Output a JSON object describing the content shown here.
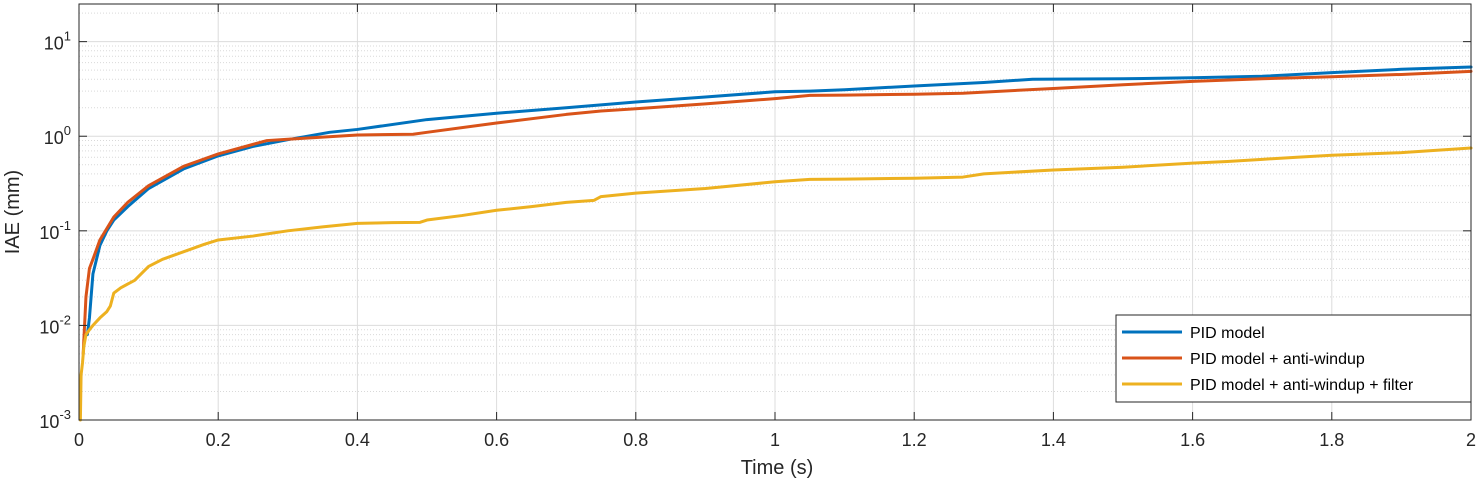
{
  "chart_data": {
    "type": "line",
    "xlabel": "Time (s)",
    "ylabel": "IAE (mm)",
    "x_scale": "linear",
    "y_scale": "log",
    "xlim": [
      0,
      2
    ],
    "ylim": [
      0.001,
      25
    ],
    "grid": true,
    "minor_grid": true,
    "legend_position": "bottom-right",
    "x_ticks": [
      0,
      0.2,
      0.4,
      0.6,
      0.8,
      1,
      1.2,
      1.4,
      1.6,
      1.8,
      2
    ],
    "x_tick_labels": [
      "0",
      "0.2",
      "0.4",
      "0.6",
      "0.8",
      "1",
      "1.2",
      "1.4",
      "1.6",
      "1.8",
      "2"
    ],
    "y_ticks": [
      {
        "value": 0.001,
        "base": "10",
        "exp": "-3"
      },
      {
        "value": 0.01,
        "base": "10",
        "exp": "-2"
      },
      {
        "value": 0.1,
        "base": "10",
        "exp": "-1"
      },
      {
        "value": 1,
        "base": "10",
        "exp": "0"
      },
      {
        "value": 10,
        "base": "10",
        "exp": "1"
      }
    ],
    "series": [
      {
        "name": "PID model",
        "color": "#0072BD",
        "x": [
          0.012,
          0.015,
          0.02,
          0.03,
          0.04,
          0.05,
          0.07,
          0.1,
          0.15,
          0.2,
          0.25,
          0.3,
          0.36,
          0.4,
          0.5,
          0.6,
          0.7,
          0.8,
          0.9,
          1.0,
          1.05,
          1.1,
          1.2,
          1.3,
          1.37,
          1.5,
          1.6,
          1.7,
          1.8,
          1.9,
          2.0
        ],
        "y": [
          0.008,
          0.012,
          0.035,
          0.07,
          0.1,
          0.13,
          0.18,
          0.28,
          0.45,
          0.62,
          0.78,
          0.92,
          1.1,
          1.18,
          1.5,
          1.75,
          2.0,
          2.3,
          2.6,
          2.95,
          3.0,
          3.1,
          3.4,
          3.7,
          4.0,
          4.05,
          4.15,
          4.3,
          4.7,
          5.1,
          5.4
        ]
      },
      {
        "name": "PID model + anti-windup",
        "color": "#D95319",
        "x": [
          0.006,
          0.008,
          0.01,
          0.015,
          0.02,
          0.03,
          0.05,
          0.07,
          0.1,
          0.15,
          0.2,
          0.25,
          0.27,
          0.3,
          0.4,
          0.48,
          0.5,
          0.6,
          0.7,
          0.75,
          0.8,
          0.9,
          1.0,
          1.05,
          1.1,
          1.2,
          1.27,
          1.4,
          1.5,
          1.6,
          1.7,
          1.8,
          1.9,
          2.0
        ],
        "y": [
          0.005,
          0.01,
          0.02,
          0.04,
          0.05,
          0.08,
          0.14,
          0.2,
          0.3,
          0.48,
          0.65,
          0.82,
          0.9,
          0.93,
          1.03,
          1.05,
          1.1,
          1.38,
          1.7,
          1.85,
          1.95,
          2.2,
          2.5,
          2.7,
          2.72,
          2.78,
          2.85,
          3.2,
          3.5,
          3.8,
          4.05,
          4.25,
          4.5,
          4.85
        ]
      },
      {
        "name": "PID model + anti-windup + filter",
        "color": "#EDB120",
        "x": [
          0.002,
          0.003,
          0.005,
          0.007,
          0.01,
          0.015,
          0.02,
          0.03,
          0.04,
          0.045,
          0.05,
          0.06,
          0.08,
          0.1,
          0.12,
          0.15,
          0.18,
          0.2,
          0.25,
          0.3,
          0.35,
          0.4,
          0.45,
          0.49,
          0.5,
          0.55,
          0.6,
          0.65,
          0.7,
          0.74,
          0.75,
          0.8,
          0.9,
          1.0,
          1.05,
          1.1,
          1.2,
          1.27,
          1.3,
          1.4,
          1.5,
          1.6,
          1.65,
          1.7,
          1.75,
          1.8,
          1.9,
          2.0
        ],
        "y": [
          0.001,
          0.003,
          0.004,
          0.006,
          0.008,
          0.009,
          0.01,
          0.012,
          0.014,
          0.016,
          0.022,
          0.025,
          0.03,
          0.042,
          0.05,
          0.06,
          0.072,
          0.08,
          0.088,
          0.1,
          0.11,
          0.12,
          0.122,
          0.123,
          0.13,
          0.145,
          0.165,
          0.18,
          0.2,
          0.21,
          0.23,
          0.25,
          0.28,
          0.33,
          0.35,
          0.352,
          0.36,
          0.37,
          0.4,
          0.44,
          0.47,
          0.52,
          0.54,
          0.57,
          0.6,
          0.63,
          0.67,
          0.75
        ]
      }
    ]
  }
}
